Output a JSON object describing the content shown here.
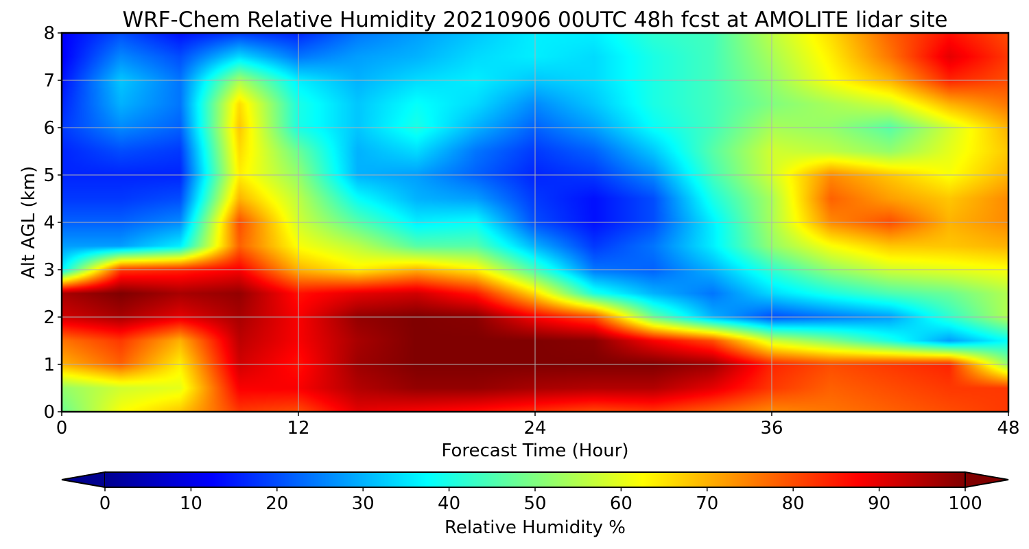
{
  "chart_data": {
    "type": "heatmap",
    "title": "WRF-Chem Relative Humidity 20210906 00UTC 48h fcst at AMOLITE lidar site",
    "xlabel": "Forecast Time (Hour)",
    "ylabel": "Alt AGL (km)",
    "xlim": [
      0,
      48
    ],
    "ylim": [
      0,
      8
    ],
    "x_ticks": [
      "0",
      "12",
      "24",
      "36",
      "48"
    ],
    "y_ticks": [
      "0",
      "1",
      "2",
      "3",
      "4",
      "5",
      "6",
      "7",
      "8"
    ],
    "grid": true,
    "colormap": "jet",
    "colorbar": {
      "label": "Relative Humidity %",
      "range": [
        0,
        100
      ],
      "ticks": [
        "0",
        "10",
        "20",
        "30",
        "40",
        "50",
        "60",
        "70",
        "80",
        "90",
        "100"
      ],
      "extend": "both",
      "orientation": "horizontal"
    },
    "x": [
      0,
      3,
      6,
      9,
      12,
      15,
      18,
      21,
      24,
      27,
      30,
      33,
      36,
      39,
      42,
      45,
      48
    ],
    "y": [
      0,
      0.5,
      1,
      1.5,
      2,
      2.5,
      3,
      3.5,
      4,
      4.5,
      5,
      5.5,
      6,
      6.5,
      7,
      7.5,
      8
    ],
    "z": [
      [
        48,
        62,
        68,
        82,
        80,
        90,
        88,
        86,
        83,
        80,
        82,
        78,
        74,
        76,
        78,
        80,
        82
      ],
      [
        52,
        58,
        60,
        88,
        88,
        95,
        98,
        98,
        96,
        95,
        95,
        90,
        82,
        78,
        80,
        82,
        82
      ],
      [
        70,
        78,
        64,
        92,
        86,
        97,
        100,
        100,
        100,
        100,
        100,
        97,
        84,
        80,
        82,
        84,
        52
      ],
      [
        76,
        82,
        70,
        94,
        88,
        96,
        100,
        100,
        100,
        99,
        88,
        80,
        58,
        50,
        40,
        28,
        38
      ],
      [
        92,
        96,
        90,
        96,
        88,
        98,
        100,
        99,
        88,
        80,
        48,
        30,
        20,
        24,
        28,
        42,
        55
      ],
      [
        96,
        100,
        96,
        98,
        86,
        90,
        92,
        85,
        66,
        40,
        30,
        24,
        34,
        40,
        45,
        48,
        55
      ],
      [
        36,
        82,
        84,
        88,
        70,
        64,
        70,
        64,
        44,
        24,
        22,
        30,
        42,
        52,
        58,
        60,
        62
      ],
      [
        28,
        28,
        36,
        78,
        62,
        56,
        46,
        46,
        30,
        18,
        24,
        36,
        52,
        62,
        68,
        68,
        70
      ],
      [
        22,
        22,
        26,
        80,
        58,
        46,
        36,
        38,
        20,
        14,
        20,
        36,
        54,
        74,
        80,
        70,
        74
      ],
      [
        18,
        18,
        20,
        70,
        56,
        38,
        30,
        28,
        18,
        14,
        20,
        40,
        54,
        78,
        72,
        68,
        74
      ],
      [
        16,
        16,
        16,
        64,
        52,
        30,
        28,
        22,
        16,
        18,
        26,
        44,
        58,
        74,
        68,
        62,
        70
      ],
      [
        16,
        20,
        18,
        66,
        48,
        30,
        34,
        24,
        18,
        22,
        32,
        46,
        58,
        56,
        52,
        60,
        68
      ],
      [
        18,
        26,
        22,
        68,
        40,
        32,
        40,
        30,
        22,
        28,
        38,
        44,
        54,
        52,
        46,
        58,
        70
      ],
      [
        16,
        30,
        24,
        66,
        40,
        32,
        38,
        34,
        26,
        32,
        40,
        44,
        50,
        54,
        58,
        70,
        76
      ],
      [
        14,
        32,
        24,
        54,
        36,
        30,
        34,
        36,
        32,
        34,
        40,
        44,
        52,
        62,
        70,
        84,
        80
      ],
      [
        12,
        26,
        20,
        34,
        24,
        28,
        30,
        34,
        36,
        34,
        40,
        44,
        54,
        64,
        76,
        90,
        82
      ],
      [
        12,
        20,
        14,
        18,
        16,
        24,
        28,
        32,
        36,
        36,
        42,
        44,
        56,
        66,
        78,
        86,
        80
      ]
    ]
  }
}
